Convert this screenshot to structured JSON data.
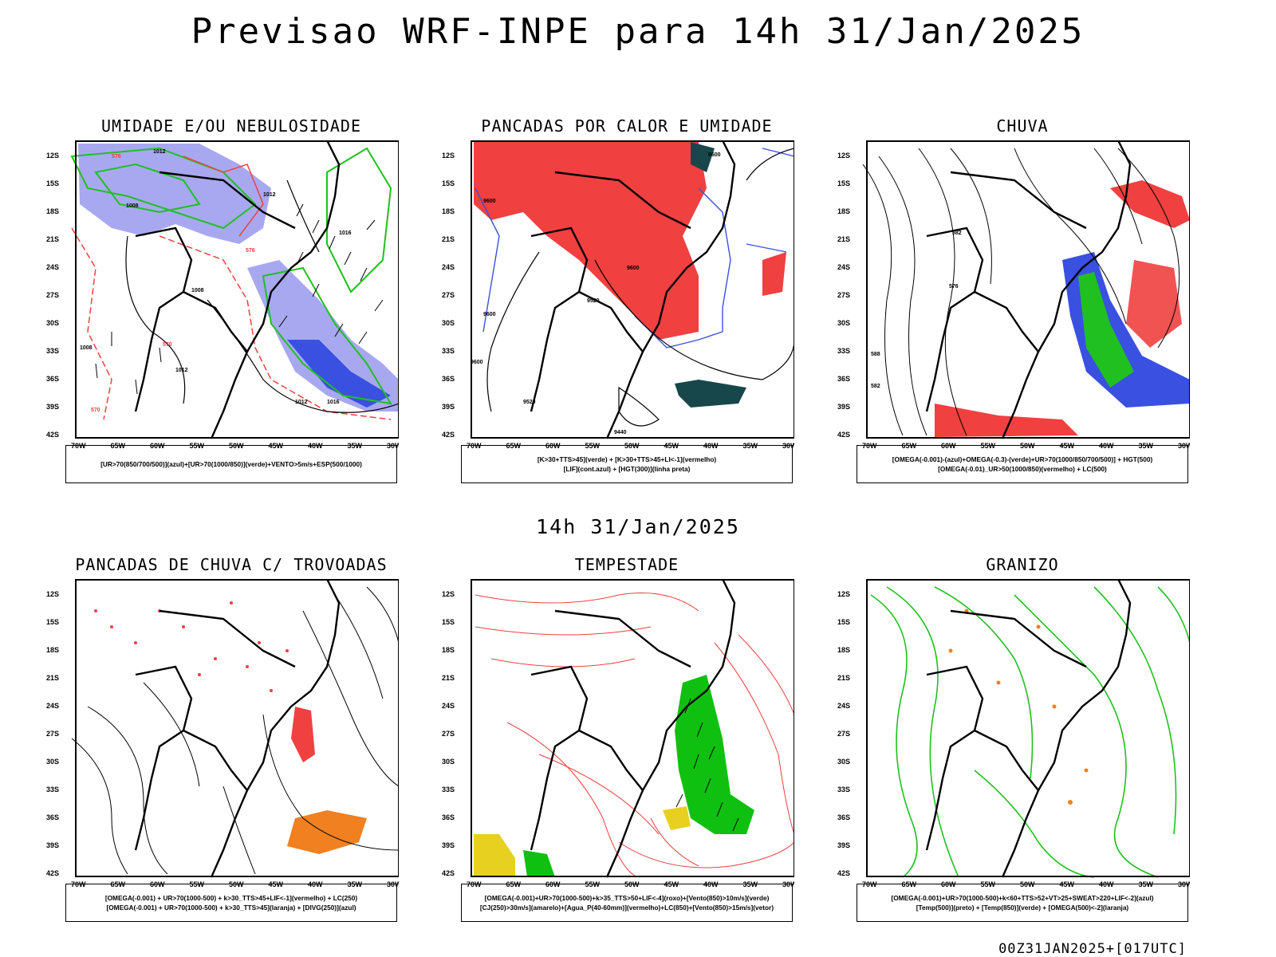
{
  "title": "Previsao WRF-INPE  para 14h 31/Jan/2025",
  "subtitle": "14h 31/Jan/2025",
  "footer": "00Z31JAN2025+[017UTC]",
  "axis": {
    "lat_labels": [
      "12S",
      "15S",
      "18S",
      "21S",
      "24S",
      "27S",
      "30S",
      "33S",
      "36S",
      "39S",
      "42S"
    ],
    "lon_labels": [
      "70W",
      "65W",
      "60W",
      "55W",
      "50W",
      "45W",
      "40W",
      "35W",
      "30W"
    ]
  },
  "chart_data": [
    {
      "type": "heatmap",
      "title": "UMIDADE E/OU NEBULOSIDADE",
      "legend": [
        "[UR>70(850/700/500)](azul)+[UR>70(1000/850)](verde)+VENTO>5m/s+ESP(500/1000)"
      ],
      "contour_labels": [
        "1012",
        "1008",
        "1012",
        "1016",
        "1008",
        "1012",
        "1012",
        "1016",
        "1008",
        "570",
        "576",
        "570",
        "576"
      ],
      "xlim": [
        -70,
        -28
      ],
      "ylim": [
        -42,
        -10
      ]
    },
    {
      "type": "heatmap",
      "title": "PANCADAS POR CALOR E UMIDADE",
      "legend": [
        "[K>30+TTS>45](verde) + [K>30+TTS>45+LI<-1](vermelho)",
        "[LIF](cont.azul) + [HGT(300)](linha preta)"
      ],
      "contour_labels": [
        "9600",
        "9600",
        "9520",
        "9600",
        "9600",
        "9520",
        "9440",
        "9600"
      ],
      "xlim": [
        -70,
        -28
      ],
      "ylim": [
        -42,
        -10
      ]
    },
    {
      "type": "heatmap",
      "title": "CHUVA",
      "legend": [
        "[OMEGA(-0.001)-(azul)+OMEGA(-0.3)-(verde)+UR>70(1000/850/700/500)] + HGT(500)",
        "[OMEGA(-0.01)_UR>50(1000/850)(vermelho) + LC(500)"
      ],
      "contour_labels": [
        "582",
        "576",
        "582",
        "588"
      ],
      "xlim": [
        -70,
        -28
      ],
      "ylim": [
        -42,
        -10
      ]
    },
    {
      "type": "heatmap",
      "title": "PANCADAS DE CHUVA C/ TROVOADAS",
      "legend": [
        "[OMEGA(-0.001) + UR>70(1000-500) + k>30_TTS>45+LIF<-1](vermelho) + LC(250)",
        "[OMEGA(-0.001) + UR>70(1000-500) + k>30_TTS>45](laranja) + [DIVG(250)](azul)"
      ],
      "contour_labels": [],
      "xlim": [
        -70,
        -28
      ],
      "ylim": [
        -42,
        -10
      ]
    },
    {
      "type": "heatmap",
      "title": "TEMPESTADE",
      "legend": [
        "[OMEGA(-0.001)+UR>70(1000-500)+k>35_TTS>50+LIF<-4](roxo)+[Vento(850)>10m/s](verde)",
        "[CJ(250)>30m/s](amarelo)+[Agua_P(40-60mm)](vermelho)+LC(850)+[Vento(850)>15m/s](vetor)"
      ],
      "contour_labels": [],
      "xlim": [
        -70,
        -28
      ],
      "ylim": [
        -42,
        -10
      ]
    },
    {
      "type": "heatmap",
      "title": "GRANIZO",
      "legend": [
        "[OMEGA(-0.001)+UR>70(1000-500)+k<60+TTS>52+VT>25+SWEAT>220+LIF<-2](azul)",
        "[Temp(500)](preto) + [Temp(850)](verde) + [OMEGA(500)<-2](laranja)"
      ],
      "contour_labels": [],
      "xlim": [
        -70,
        -28
      ],
      "ylim": [
        -42,
        -10
      ]
    }
  ],
  "colors": {
    "red": "#f04040",
    "blue": "#3a50e0",
    "lightblue": "#a8a8f0",
    "green": "#20c020",
    "darkteal": "#17474a",
    "orange": "#f08020",
    "yellow": "#e8d020",
    "lime": "#10c010"
  }
}
